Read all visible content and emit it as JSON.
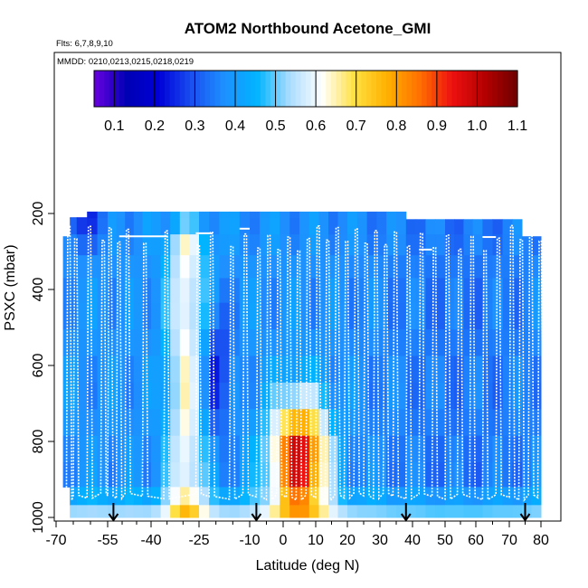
{
  "chart_data": {
    "type": "heatmap",
    "title": "ATOM2 Northbound Acetone_GMI",
    "subtitle_flights": "Flts: 6,7,8,9,10",
    "subtitle_dates": "MMDD: 0210,0213,0215,0218,0219",
    "xlabel": "Latitude (deg N)",
    "ylabel": "PSXC (mbar)",
    "xlim": [
      -70,
      80
    ],
    "ylim": [
      1000,
      120
    ],
    "x_ticks": [
      {
        "value": -70,
        "label": "-70"
      },
      {
        "value": -55,
        "label": "-55"
      },
      {
        "value": -40,
        "label": "-40"
      },
      {
        "value": -25,
        "label": "-25"
      },
      {
        "value": -10,
        "label": "-10"
      },
      {
        "value": 0,
        "label": "0"
      },
      {
        "value": 10,
        "label": "10"
      },
      {
        "value": 20,
        "label": "20"
      },
      {
        "value": 30,
        "label": "30"
      },
      {
        "value": 40,
        "label": "40"
      },
      {
        "value": 50,
        "label": "50"
      },
      {
        "value": 60,
        "label": "60"
      },
      {
        "value": 70,
        "label": "70"
      },
      {
        "value": 80,
        "label": "80"
      }
    ],
    "y_ticks": [
      {
        "value": 200,
        "label": "200"
      },
      {
        "value": 400,
        "label": "400"
      },
      {
        "value": 600,
        "label": "600"
      },
      {
        "value": 800,
        "label": "800"
      },
      {
        "value": 1000,
        "label": "1000"
      }
    ],
    "colorbar": {
      "min": 0.05,
      "max": 1.1,
      "ticks": [
        "0.1",
        "0.2",
        "0.3",
        "0.4",
        "0.5",
        "0.6",
        "0.7",
        "0.8",
        "0.9",
        "1.0",
        "1.1"
      ],
      "tick_values": [
        0.1,
        0.2,
        0.3,
        0.4,
        0.5,
        0.6,
        0.7,
        0.8,
        0.9,
        1.0,
        1.1
      ],
      "colors": [
        "#6a00e0",
        "#0000b4",
        "#0000d8",
        "#1a50f0",
        "#1e90ff",
        "#00b4ff",
        "#aadcff",
        "#ffffff",
        "#ffe040",
        "#ffb000",
        "#ff7000",
        "#ee1010",
        "#b40000",
        "#6e0000"
      ]
    },
    "curtain_lat_edges": [
      -68,
      -66,
      -64,
      -61,
      -58,
      -55,
      -52,
      -49,
      -46,
      -43,
      -40,
      -37,
      -34,
      -31,
      -28,
      -25,
      -22,
      -19,
      -16,
      -13,
      -10,
      -7,
      -4,
      -1,
      2,
      5,
      8,
      11,
      14,
      17,
      20,
      23,
      26,
      29,
      32,
      35,
      38,
      41,
      44,
      47,
      50,
      53,
      56,
      59,
      62,
      65,
      68,
      71,
      74,
      77,
      80
    ],
    "curtain_pressure_levels": [
      195,
      230,
      280,
      340,
      400,
      470,
      540,
      610,
      680,
      750,
      820,
      890,
      950,
      985
    ],
    "arrow_latitudes": [
      -53,
      -8,
      38,
      75
    ],
    "flight_track_latitudes_approx": [
      -67,
      -65,
      -61,
      -57,
      -55,
      -52,
      -49,
      -43,
      -36,
      -26,
      -22,
      -16,
      -12,
      -8,
      -5,
      -2,
      1,
      4,
      7,
      10,
      13,
      16,
      19,
      22,
      25,
      28,
      31,
      34,
      38,
      42,
      46,
      50,
      54,
      58,
      62,
      66,
      70,
      73,
      76,
      79
    ]
  }
}
